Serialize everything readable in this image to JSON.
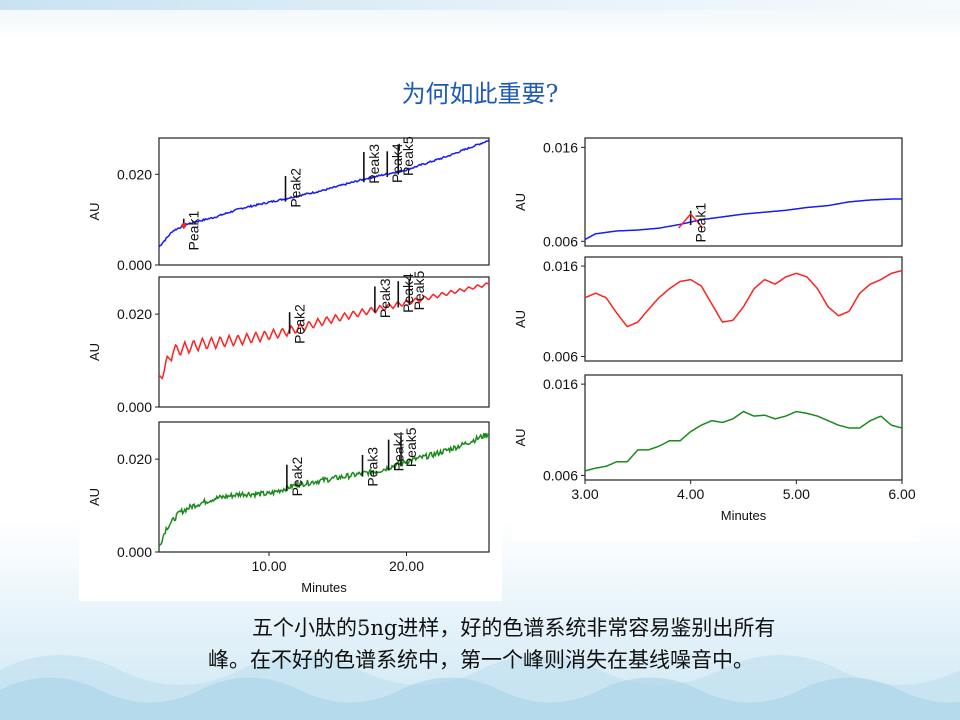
{
  "slide": {
    "title": "为何如此重要?",
    "caption_line1": "五个小肽的5ng进样，好的色谱系统非常容易鉴别出所有",
    "caption_line2": "峰。在不好的色谱系统中，第一个峰则消失在基线噪音中。"
  },
  "colors": {
    "blue": "#1a1aff",
    "red": "#ff2020",
    "green": "#1a8a1a",
    "title": "#1e5bb8"
  },
  "chart_data": [
    {
      "type": "line",
      "panel": "left-top",
      "xlim": [
        2,
        26
      ],
      "ylim": [
        0,
        0.028
      ],
      "ylabel": "AU",
      "yticks": [
        "0.000",
        "0.020"
      ],
      "ytick_values": [
        0,
        0.02
      ],
      "xticks": [],
      "xlabel": "",
      "series": [
        {
          "color": "blue",
          "x": [
            2,
            3,
            4,
            6,
            8,
            11,
            14,
            17,
            20,
            23,
            26
          ],
          "y": [
            0.004,
            0.0075,
            0.009,
            0.0105,
            0.0125,
            0.0145,
            0.0165,
            0.019,
            0.021,
            0.024,
            0.0275
          ],
          "noise": 0.0004
        }
      ],
      "peaks": [
        {
          "label": "Peak1",
          "x": 3.8,
          "height": 0.0015,
          "marker": "red"
        },
        {
          "label": "Peak2",
          "x": 11.2,
          "height": 0.005
        },
        {
          "label": "Peak3",
          "x": 16.9,
          "height": 0.006
        },
        {
          "label": "Peak4",
          "x": 18.6,
          "height": 0.005
        },
        {
          "label": "Peak5",
          "x": 19.4,
          "height": 0.006
        }
      ]
    },
    {
      "type": "line",
      "panel": "left-mid",
      "xlim": [
        2,
        26
      ],
      "ylim": [
        0,
        0.028
      ],
      "ylabel": "AU",
      "yticks": [
        "0.000",
        "0.020"
      ],
      "ytick_values": [
        0,
        0.02
      ],
      "xticks": [],
      "xlabel": "",
      "series": [
        {
          "color": "red",
          "x": [
            2,
            3,
            5,
            8,
            11,
            14,
            17,
            20,
            23,
            26
          ],
          "y": [
            0.006,
            0.012,
            0.0135,
            0.0145,
            0.016,
            0.0185,
            0.0205,
            0.0225,
            0.0245,
            0.0265
          ],
          "oscillation": 0.003
        }
      ],
      "peaks": [
        {
          "label": "Peak2",
          "x": 11.5,
          "height": 0.004
        },
        {
          "label": "Peak3",
          "x": 17.7,
          "height": 0.005
        },
        {
          "label": "Peak4",
          "x": 19.4,
          "height": 0.005
        },
        {
          "label": "Peak5",
          "x": 20.2,
          "height": 0.005
        }
      ]
    },
    {
      "type": "line",
      "panel": "left-bottom",
      "xlim": [
        2,
        26
      ],
      "ylim": [
        0,
        0.028
      ],
      "ylabel": "AU",
      "yticks": [
        "0.000",
        "0.020"
      ],
      "ytick_values": [
        0,
        0.02
      ],
      "xticks": [
        "10.00",
        "20.00"
      ],
      "xtick_values": [
        10,
        20
      ],
      "xlabel": "Minutes",
      "series": [
        {
          "color": "green",
          "x": [
            2,
            2.5,
            3.5,
            4.5,
            6,
            8,
            10,
            12,
            14,
            16,
            18,
            20,
            22,
            24,
            26
          ],
          "y": [
            0.001,
            0.005,
            0.0085,
            0.01,
            0.0115,
            0.0125,
            0.0125,
            0.0145,
            0.0155,
            0.0165,
            0.0175,
            0.0195,
            0.021,
            0.023,
            0.0255
          ],
          "noise": 0.0012
        }
      ],
      "peaks": [
        {
          "label": "Peak2",
          "x": 11.3,
          "height": 0.005
        },
        {
          "label": "Peak3",
          "x": 16.8,
          "height": 0.004
        },
        {
          "label": "Peak4",
          "x": 18.7,
          "height": 0.006
        },
        {
          "label": "Peak5",
          "x": 19.6,
          "height": 0.006
        }
      ]
    },
    {
      "type": "line",
      "panel": "right-top",
      "xlim": [
        3,
        6
      ],
      "ylim": [
        0.0055,
        0.017
      ],
      "ylabel": "AU",
      "yticks": [
        "0.006",
        "0.016"
      ],
      "ytick_values": [
        0.006,
        0.016
      ],
      "xticks": [],
      "xlabel": "",
      "series": [
        {
          "color": "blue",
          "x": [
            3,
            3.1,
            3.3,
            3.5,
            3.7,
            3.9,
            4.1,
            4.3,
            4.5,
            4.7,
            4.9,
            5.1,
            5.3,
            5.5,
            5.7,
            5.9,
            6.0
          ],
          "y": [
            0.0062,
            0.0068,
            0.0071,
            0.0072,
            0.0074,
            0.0078,
            0.0083,
            0.0086,
            0.0089,
            0.0091,
            0.0093,
            0.0096,
            0.0098,
            0.0102,
            0.0104,
            0.0105,
            0.0105
          ]
        }
      ],
      "peaks": [
        {
          "label": "Peak1",
          "x": 4.0,
          "height": 0.0012,
          "marker": "red-triangle"
        }
      ]
    },
    {
      "type": "line",
      "panel": "right-mid",
      "xlim": [
        3,
        6
      ],
      "ylim": [
        0.0055,
        0.017
      ],
      "ylabel": "AU",
      "yticks": [
        "0.006",
        "0.016"
      ],
      "ytick_values": [
        0.006,
        0.016
      ],
      "xticks": [],
      "xlabel": "",
      "series": [
        {
          "color": "red",
          "x": [
            3,
            3.1,
            3.2,
            3.3,
            3.4,
            3.5,
            3.6,
            3.7,
            3.8,
            3.9,
            4.0,
            4.1,
            4.2,
            4.3,
            4.4,
            4.5,
            4.6,
            4.7,
            4.8,
            4.9,
            5.0,
            5.1,
            5.2,
            5.3,
            5.4,
            5.5,
            5.6,
            5.7,
            5.8,
            5.9,
            6.0
          ],
          "y": [
            0.0125,
            0.013,
            0.0125,
            0.0108,
            0.0093,
            0.0098,
            0.0112,
            0.0125,
            0.0135,
            0.0143,
            0.0145,
            0.0138,
            0.0118,
            0.0098,
            0.01,
            0.0115,
            0.0135,
            0.0145,
            0.014,
            0.0148,
            0.0152,
            0.0148,
            0.0135,
            0.0115,
            0.0105,
            0.011,
            0.013,
            0.014,
            0.0145,
            0.0152,
            0.0155
          ]
        }
      ],
      "peaks": []
    },
    {
      "type": "line",
      "panel": "right-bottom",
      "xlim": [
        3,
        6
      ],
      "ylim": [
        0.0055,
        0.017
      ],
      "ylabel": "AU",
      "yticks": [
        "0.006",
        "0.016"
      ],
      "ytick_values": [
        0.006,
        0.016
      ],
      "xticks": [
        "3.00",
        "4.00",
        "5.00",
        "6.00"
      ],
      "xtick_values": [
        3,
        4,
        5,
        6
      ],
      "xlabel": "Minutes",
      "series": [
        {
          "color": "green",
          "x": [
            3,
            3.1,
            3.2,
            3.3,
            3.4,
            3.5,
            3.6,
            3.7,
            3.8,
            3.9,
            4.0,
            4.1,
            4.2,
            4.3,
            4.4,
            4.5,
            4.6,
            4.7,
            4.8,
            4.9,
            5.0,
            5.1,
            5.2,
            5.3,
            5.4,
            5.5,
            5.6,
            5.7,
            5.8,
            5.9,
            6.0
          ],
          "y": [
            0.0065,
            0.0068,
            0.007,
            0.0075,
            0.0075,
            0.0088,
            0.0088,
            0.0092,
            0.0098,
            0.0098,
            0.0108,
            0.0115,
            0.012,
            0.0118,
            0.0122,
            0.013,
            0.0125,
            0.0126,
            0.0122,
            0.0125,
            0.013,
            0.0128,
            0.0125,
            0.012,
            0.0115,
            0.0112,
            0.0112,
            0.012,
            0.0125,
            0.0115,
            0.0112
          ]
        }
      ],
      "peaks": []
    }
  ]
}
